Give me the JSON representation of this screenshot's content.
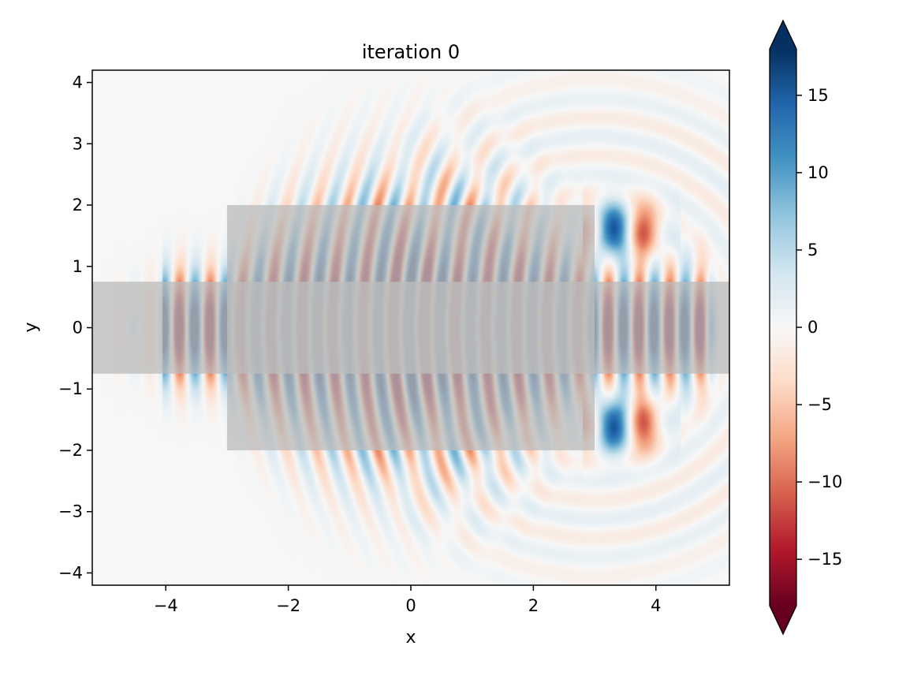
{
  "chart_data": {
    "type": "heatmap",
    "title": "iteration 0",
    "xlabel": "x",
    "ylabel": "y",
    "xlim": [
      -5.2,
      5.2
    ],
    "ylim": [
      -4.2,
      4.2
    ],
    "xticks": [
      -4,
      -2,
      0,
      2,
      4
    ],
    "xtick_labels": [
      "−4",
      "−2",
      "0",
      "2",
      "4"
    ],
    "yticks": [
      -4,
      -3,
      -2,
      -1,
      0,
      1,
      2,
      3,
      4
    ],
    "ytick_labels": [
      "−4",
      "−3",
      "−2",
      "−1",
      "0",
      "1",
      "2",
      "3",
      "4"
    ],
    "grid": false,
    "colormap": "RdBu",
    "colorbar": {
      "vmin": -18,
      "vmax": 18,
      "extend": "both",
      "ticks": [
        -15,
        -10,
        -5,
        0,
        5,
        10,
        15
      ],
      "tick_labels": [
        "−15",
        "−10",
        "−5",
        "0",
        "5",
        "10",
        "15"
      ],
      "colors": [
        "#67001f",
        "#b2182b",
        "#d6604d",
        "#f4a582",
        "#fddbc7",
        "#f7f7f7",
        "#d1e5f0",
        "#92c5de",
        "#4393c3",
        "#2166ac",
        "#053061"
      ]
    },
    "overlays": [
      {
        "name": "waveguide",
        "x": [
          -5.2,
          5.2
        ],
        "y": [
          -0.75,
          0.75
        ],
        "color": "#bdbdbd"
      },
      {
        "name": "design-region",
        "x": [
          -3,
          3
        ],
        "y": [
          -2,
          2
        ],
        "color": "#bdbdbd"
      }
    ],
    "field": {
      "source_x": -4.05,
      "end_x": 4.85,
      "wavelength": 0.5,
      "peak": 18
    }
  }
}
